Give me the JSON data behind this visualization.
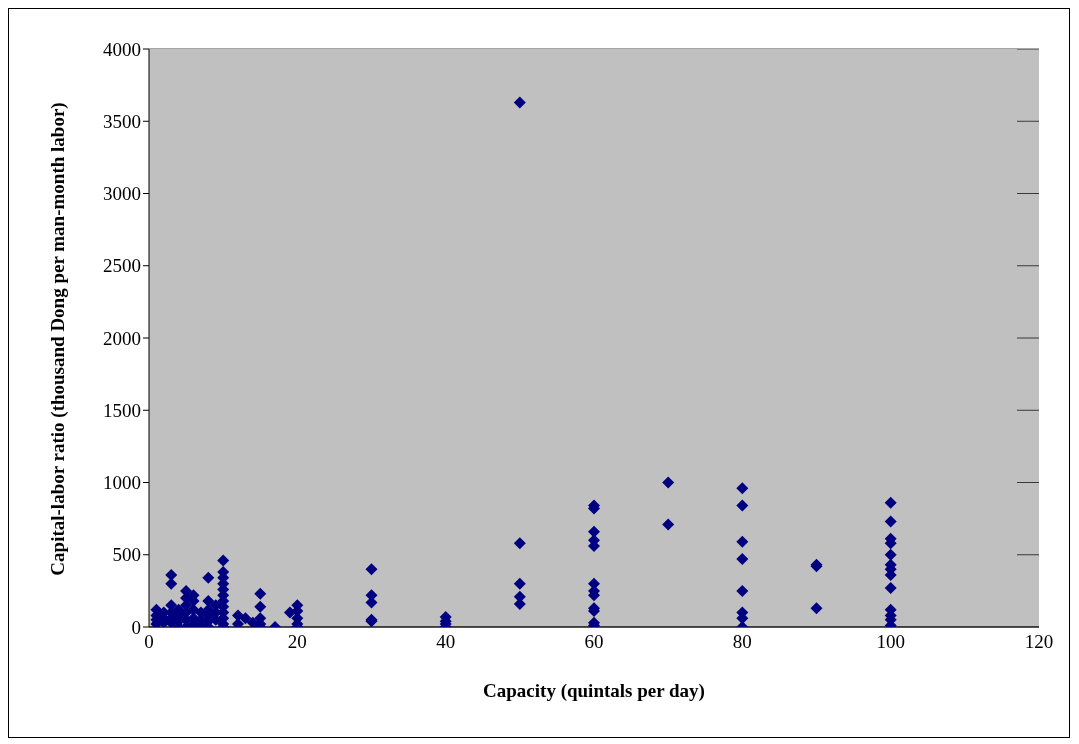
{
  "chart_data": {
    "type": "scatter",
    "xlabel": "Capacity (quintals per day)",
    "ylabel": "Capital-labor ratio (thousand Dong per man-month labor)",
    "x": [
      1,
      1,
      1,
      1,
      2,
      2,
      2,
      3,
      3,
      3,
      3,
      3,
      3,
      4,
      4,
      4,
      4,
      5,
      5,
      5,
      5,
      5,
      5,
      6,
      6,
      6,
      6,
      6,
      7,
      7,
      7,
      8,
      8,
      8,
      8,
      8,
      8,
      9,
      9,
      9,
      10,
      10,
      10,
      10,
      10,
      10,
      10,
      10,
      10,
      10,
      10,
      10,
      12,
      12,
      13,
      14,
      15,
      15,
      15,
      15,
      15,
      17,
      19,
      20,
      20,
      20,
      20,
      20,
      30,
      30,
      30,
      30,
      30,
      40,
      40,
      40,
      40,
      50,
      50,
      50,
      50,
      50,
      60,
      60,
      60,
      60,
      60,
      60,
      60,
      60,
      60,
      60,
      60,
      60,
      70,
      70,
      80,
      80,
      80,
      80,
      80,
      80,
      80,
      80,
      90,
      90,
      90,
      100,
      100,
      100,
      100,
      100,
      100,
      100,
      100,
      100,
      100,
      100,
      100,
      100
    ],
    "values": [
      120,
      80,
      50,
      20,
      100,
      60,
      30,
      360,
      300,
      150,
      100,
      60,
      30,
      120,
      80,
      40,
      0,
      250,
      200,
      150,
      100,
      50,
      0,
      220,
      180,
      120,
      60,
      20,
      100,
      50,
      10,
      340,
      180,
      120,
      80,
      40,
      0,
      150,
      100,
      50,
      460,
      380,
      340,
      300,
      260,
      220,
      180,
      140,
      100,
      60,
      20,
      0,
      80,
      20,
      60,
      30,
      230,
      140,
      60,
      20,
      0,
      0,
      100,
      150,
      110,
      60,
      20,
      0,
      400,
      220,
      170,
      50,
      40,
      70,
      40,
      20,
      0,
      3630,
      580,
      300,
      210,
      160,
      840,
      820,
      660,
      600,
      560,
      300,
      250,
      220,
      130,
      110,
      30,
      10,
      1000,
      710,
      960,
      840,
      590,
      470,
      250,
      100,
      60,
      0,
      430,
      420,
      130,
      860,
      730,
      610,
      580,
      500,
      430,
      400,
      360,
      270,
      120,
      80,
      50,
      10
    ],
    "color": "#000080",
    "marker": "diamond",
    "xlim": [
      0,
      120
    ],
    "xticks": [
      0,
      20,
      40,
      60,
      80,
      100,
      120
    ],
    "ylim": [
      0,
      4000
    ],
    "yticks": [
      0,
      500,
      1000,
      1500,
      2000,
      2500,
      3000,
      3500,
      4000
    ],
    "grid": "y"
  }
}
